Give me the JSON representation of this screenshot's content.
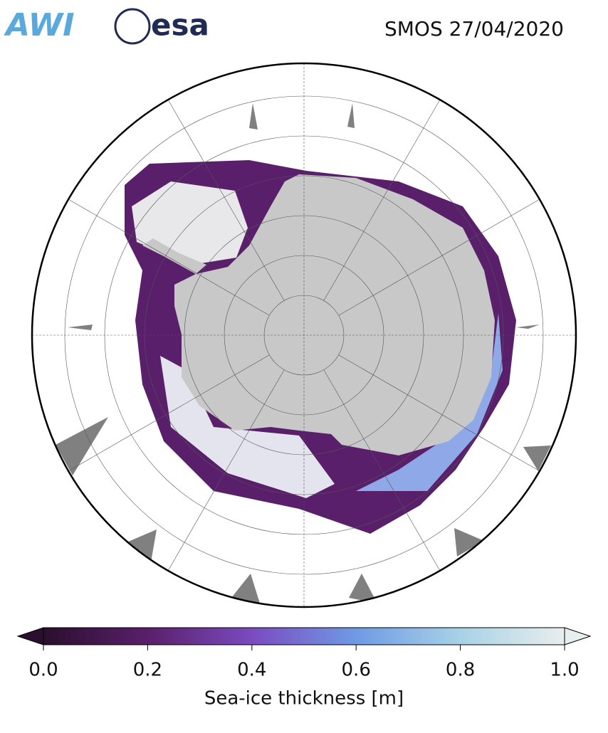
{
  "header": {
    "logos": [
      "AWI",
      "esa"
    ],
    "title": "SMOS 27/04/2020"
  },
  "colorbar": {
    "label": "Sea-ice thickness [m]",
    "lim": [
      0,
      1
    ],
    "ticks": [
      {
        "value": 0,
        "label": "0.0"
      },
      0.2,
      0.4,
      0.6,
      0.8,
      {
        "value": 1,
        "label": "1.0"
      }
    ],
    "colors": [
      "#2a0f2e",
      "#5a1f6a",
      "#7a4bc0",
      "#6f9ae4",
      "#a8d2e6",
      "#e8eeee"
    ]
  }
}
